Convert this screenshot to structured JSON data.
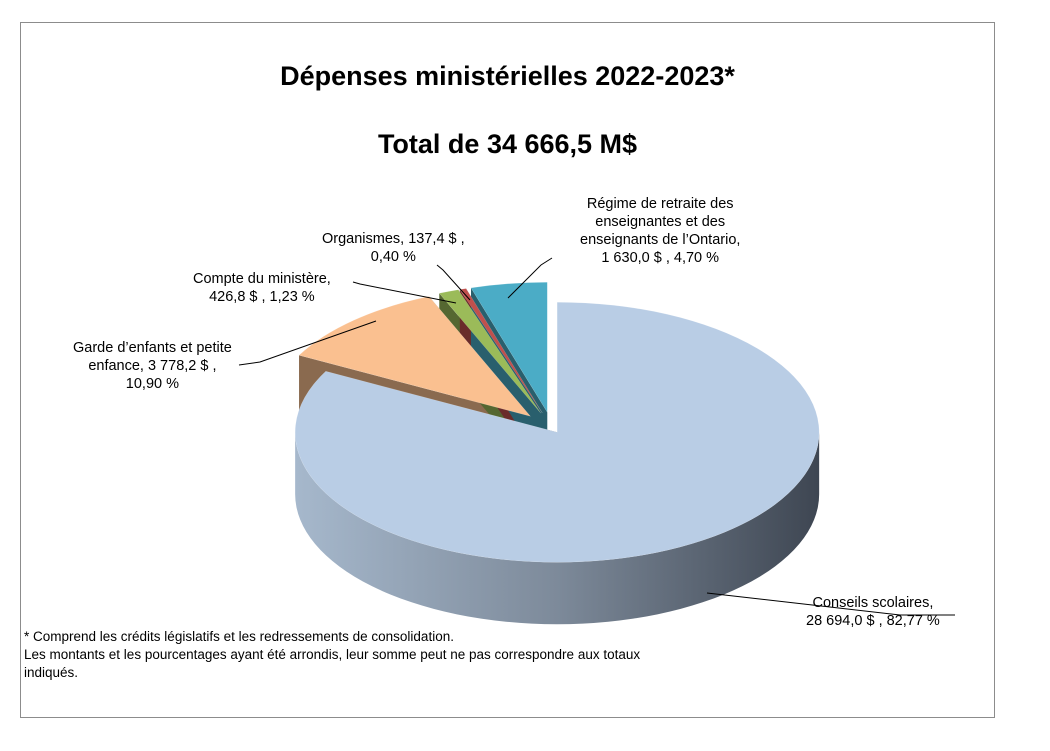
{
  "chart_data": {
    "type": "pie",
    "title": "Dépenses ministérielles 2022-2023*",
    "subtitle": "Total de 34 666,5 M$",
    "slices": [
      {
        "name": "Conseils scolaires",
        "value": 28694.0,
        "percent": 82.77,
        "color": "#b9cde5",
        "label_lines": [
          "Conseils scolaires,",
          "28 694,0 $ , 82,77 %"
        ]
      },
      {
        "name": "Garde d’enfants et petite enfance",
        "value": 3778.2,
        "percent": 10.9,
        "color": "#fac090",
        "label_lines": [
          "Garde d’enfants et petite",
          "enfance,  3 778,2 $ ,",
          "10,90 %"
        ]
      },
      {
        "name": "Compte du ministère",
        "value": 426.8,
        "percent": 1.23,
        "color": "#9bbb59",
        "label_lines": [
          "Compte du ministère,",
          "426,8 $ , 1,23 %"
        ]
      },
      {
        "name": "Organismes",
        "value": 137.4,
        "percent": 0.4,
        "color": "#c0504d",
        "label_lines": [
          "Organismes,   137,4 $ ,",
          "0,40 %"
        ]
      },
      {
        "name": "Régime de retraite des enseignantes et des enseignants de l’Ontario",
        "value": 1630.0,
        "percent": 4.7,
        "color": "#4bacc6",
        "label_lines": [
          "Régime de retraite des",
          "enseignantes et des",
          "enseignants de l’Ontario,",
          "1 630,0 $ , 4,70 %"
        ]
      }
    ],
    "footnote": [
      "* Comprend les crédits législatifs et les redressements de consolidation.",
      " Les montants et les pourcentages ayant été arrondis, leur somme peut ne pas correspondre aux totaux",
      "indiqués."
    ]
  }
}
